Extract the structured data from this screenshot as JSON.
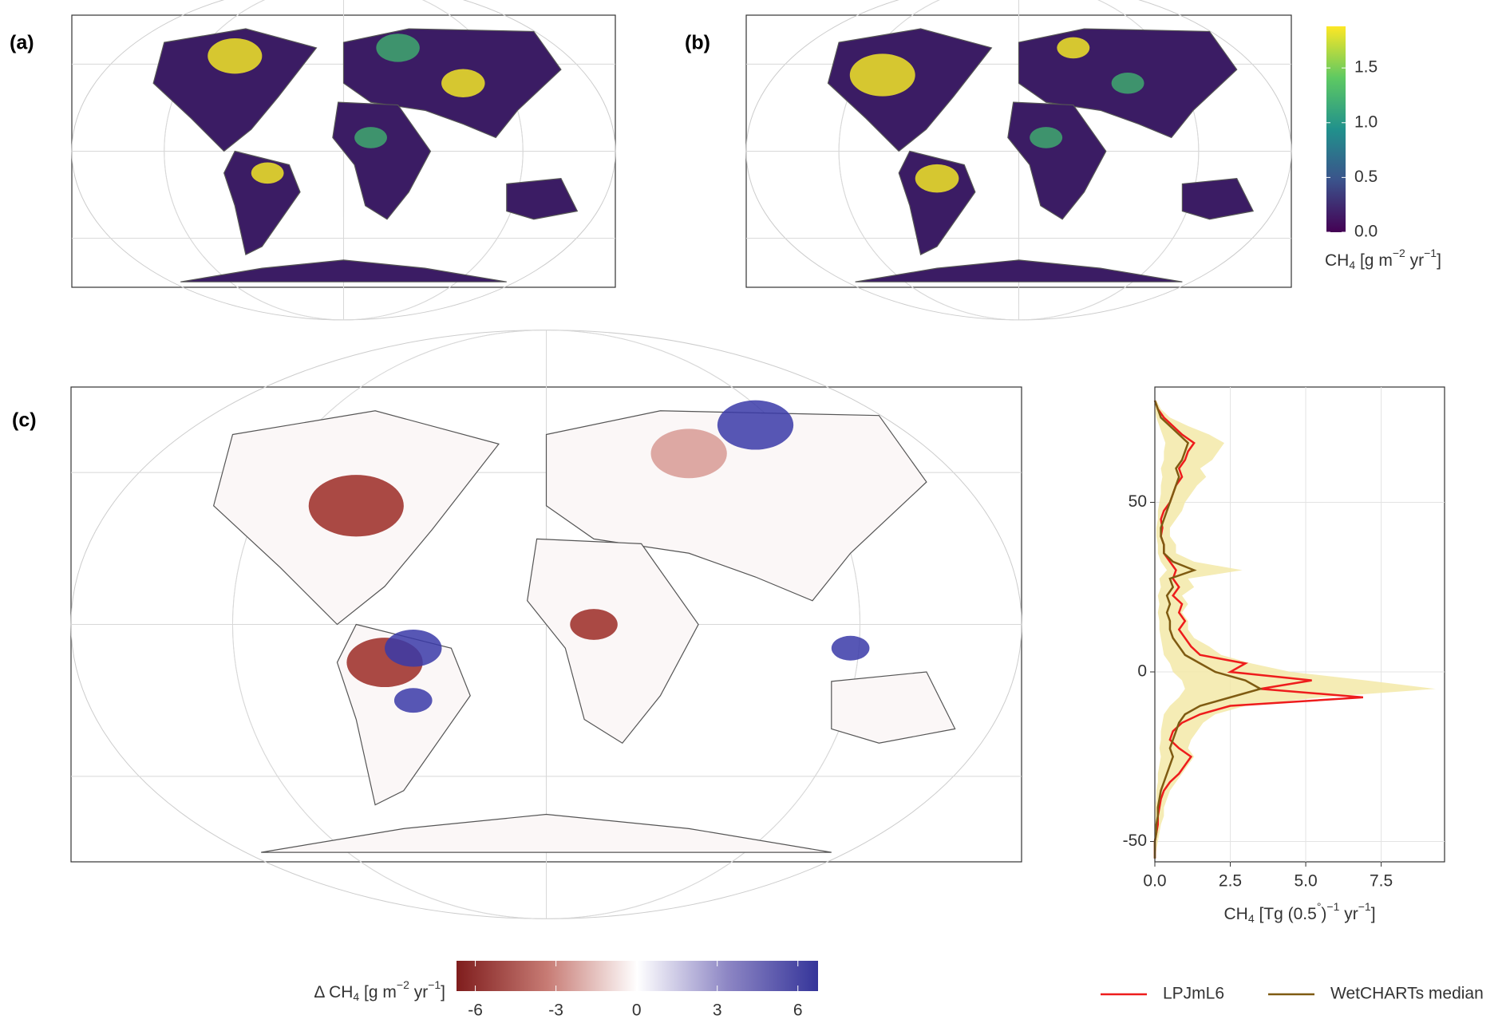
{
  "panels": [
    {
      "label": "(a)"
    },
    {
      "label": "(b)"
    },
    {
      "label": "(c)"
    }
  ],
  "colorbar_flux": {
    "palette": [
      "#440154",
      "#3b528b",
      "#21918c",
      "#5ec962",
      "#fde725"
    ],
    "ylim": [
      0,
      1.88
    ],
    "yticks": [
      {
        "value": 0,
        "label": "0.0"
      },
      0.5,
      {
        "value": 1,
        "label": "1.0"
      },
      1.5
    ],
    "label_parts": [
      {
        "text": "CH",
        "style": "normal"
      },
      {
        "text": "4",
        "style": "sub"
      },
      {
        "text": "  [g m",
        "style": "normal"
      },
      {
        "text": "−2",
        "style": "sup"
      },
      {
        "text": " yr",
        "style": "normal"
      },
      {
        "text": "−1",
        "style": "sup"
      },
      {
        "text": "]",
        "style": "normal"
      }
    ]
  },
  "colorbar_diff": {
    "palette": [
      "#7f1d1d",
      "#c77b74",
      "#ffffff",
      "#8d86c4",
      "#35359a"
    ],
    "xlim": [
      -6.7,
      6.75
    ],
    "xticks": [
      -6,
      -3,
      0,
      3,
      6
    ],
    "label_parts": [
      {
        "text": "Δ  CH",
        "style": "normal"
      },
      {
        "text": "4",
        "style": "sub"
      },
      {
        "text": " [g m",
        "style": "normal"
      },
      {
        "text": "−2",
        "style": "sup"
      },
      {
        "text": " yr",
        "style": "normal"
      },
      {
        "text": "−1",
        "style": "sup"
      },
      {
        "text": "]",
        "style": "normal"
      }
    ]
  },
  "chart_data": {
    "type": "line",
    "orientation": "horizontal",
    "grid": true,
    "x": [
      -55,
      -52.5,
      -50,
      -47.5,
      -45,
      -42.5,
      -40,
      -37.5,
      -35,
      -32.5,
      -30,
      -27.5,
      -25,
      -22.5,
      -20,
      -17.5,
      -15,
      -12.5,
      -10,
      -7.5,
      -5,
      -2.5,
      0,
      2.5,
      5,
      7.5,
      10,
      12.5,
      15,
      17.5,
      20,
      22.5,
      25,
      27.5,
      30,
      32.5,
      35,
      37.5,
      40,
      42.5,
      45,
      47.5,
      50,
      52.5,
      55,
      57.5,
      60,
      62.5,
      65,
      67.5,
      70,
      72.5,
      75,
      77.5,
      80
    ],
    "xlim": [
      0,
      9.6
    ],
    "xticks": [
      {
        "value": 0,
        "label": "0.0"
      },
      2.5,
      {
        "value": 5,
        "label": "5.0"
      },
      7.5
    ],
    "ylim": [
      -56,
      84
    ],
    "yticks": [
      -50,
      0,
      50
    ],
    "xlabel_parts": [
      {
        "text": "CH",
        "style": "normal"
      },
      {
        "text": "4",
        "style": "sub"
      },
      {
        "text": "  [Tg (0.5",
        "style": "normal"
      },
      {
        "text": "°",
        "style": "sup"
      },
      {
        "text": ")",
        "style": "normal"
      },
      {
        "text": "−1",
        "style": "sup"
      },
      {
        "text": "  yr",
        "style": "normal"
      },
      {
        "text": "−1",
        "style": "sup"
      },
      {
        "text": "]",
        "style": "normal"
      }
    ],
    "band": {
      "color": "#f3e9a8",
      "lower": [
        0,
        0,
        0,
        0,
        0,
        0,
        0,
        0.05,
        0.05,
        0.1,
        0.1,
        0.15,
        0.2,
        0.15,
        0.2,
        0.2,
        0.25,
        0.3,
        0.5,
        0.8,
        1.0,
        0.9,
        0.6,
        0.5,
        0.3,
        0.25,
        0.2,
        0.15,
        0.15,
        0.1,
        0.15,
        0.1,
        0.2,
        0.15,
        0.4,
        0.2,
        0.1,
        0.1,
        0.05,
        0.05,
        0.1,
        0.1,
        0.15,
        0.2,
        0.2,
        0.25,
        0.2,
        0.3,
        0.3,
        0.35,
        0.25,
        0.15,
        0.05,
        0,
        0
      ],
      "upper": [
        0,
        0.05,
        0.1,
        0.15,
        0.2,
        0.3,
        0.3,
        0.4,
        0.5,
        0.7,
        0.9,
        1.1,
        1.3,
        1.1,
        1.2,
        1.4,
        1.6,
        2.0,
        3.0,
        5.5,
        9.3,
        7.0,
        4.5,
        3.2,
        2.2,
        1.8,
        1.3,
        1.1,
        1.1,
        0.9,
        1.1,
        0.9,
        1.3,
        1.1,
        2.9,
        1.3,
        0.7,
        0.7,
        0.5,
        0.5,
        0.7,
        0.9,
        1.0,
        1.2,
        1.4,
        1.7,
        1.5,
        1.9,
        2.1,
        2.3,
        1.8,
        1.1,
        0.5,
        0.2,
        0.05
      ]
    },
    "series": [
      {
        "name": "LPJmL6",
        "color": "#ee1c1c",
        "values": [
          0,
          0,
          0,
          0.05,
          0.1,
          0.1,
          0.15,
          0.2,
          0.3,
          0.5,
          0.8,
          1.0,
          1.2,
          0.8,
          0.5,
          0.6,
          0.9,
          1.5,
          2.5,
          6.9,
          3.5,
          5.2,
          2.5,
          3.0,
          1.5,
          1.2,
          1.0,
          0.8,
          1.0,
          0.8,
          0.9,
          0.6,
          0.8,
          0.6,
          0.7,
          0.5,
          0.3,
          0.3,
          0.2,
          0.25,
          0.2,
          0.3,
          0.5,
          0.6,
          0.7,
          0.9,
          0.8,
          1.0,
          1.1,
          1.3,
          0.9,
          0.6,
          0.3,
          0.1,
          0
        ]
      },
      {
        "name": "WetCHARTs median",
        "color": "#7f5b12",
        "values": [
          0,
          0,
          0,
          0.05,
          0.05,
          0.1,
          0.1,
          0.15,
          0.2,
          0.3,
          0.4,
          0.5,
          0.6,
          0.5,
          0.6,
          0.7,
          0.8,
          1.0,
          1.5,
          2.5,
          3.5,
          3.0,
          2.0,
          1.5,
          1.0,
          0.8,
          0.6,
          0.5,
          0.5,
          0.4,
          0.5,
          0.4,
          0.6,
          0.5,
          1.3,
          0.6,
          0.3,
          0.3,
          0.2,
          0.2,
          0.3,
          0.4,
          0.5,
          0.6,
          0.7,
          0.8,
          0.7,
          0.9,
          1.0,
          1.1,
          0.8,
          0.5,
          0.2,
          0.1,
          0
        ]
      }
    ]
  }
}
